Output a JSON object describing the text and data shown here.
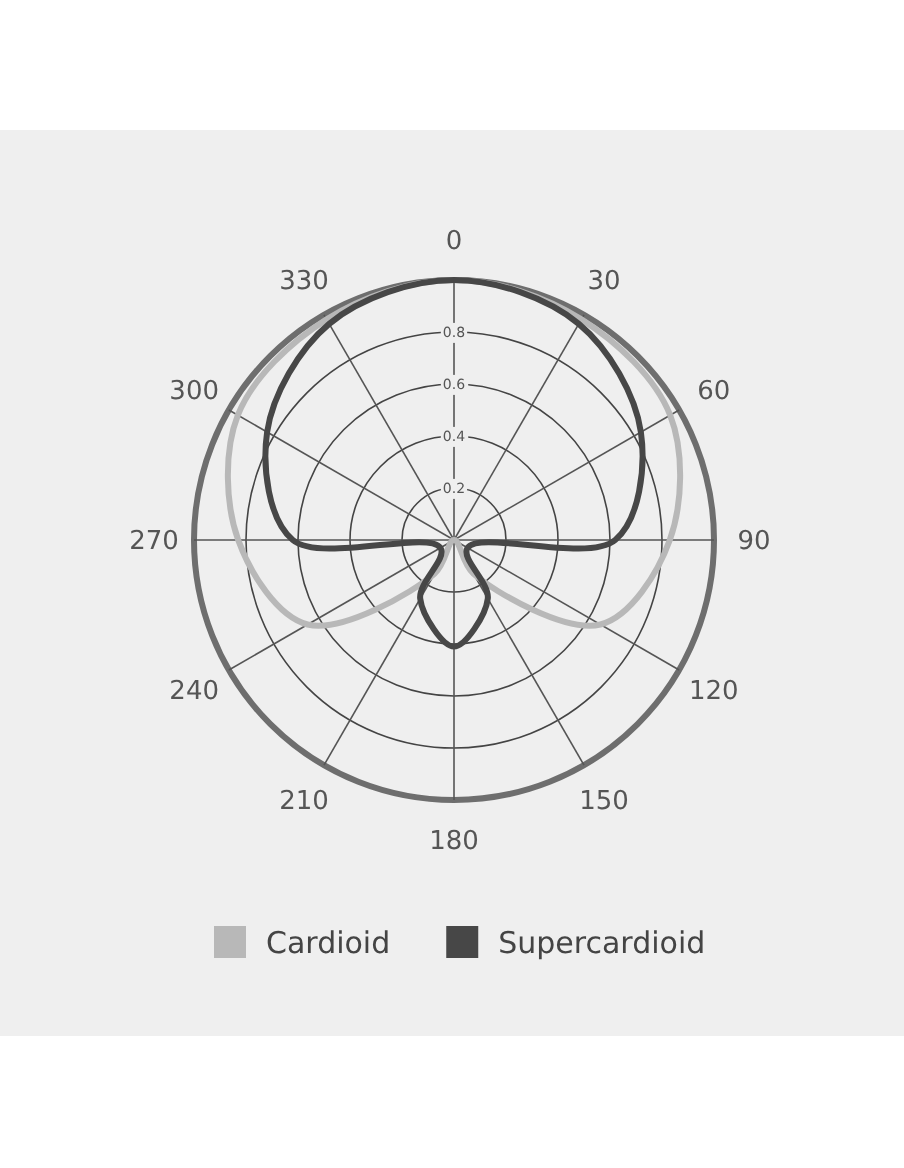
{
  "chart_data": {
    "type": "radar",
    "categories": [
      "0",
      "30",
      "60",
      "90",
      "120",
      "150",
      "180",
      "210",
      "240",
      "270",
      "300",
      "330"
    ],
    "series": [
      {
        "name": "Cardioid",
        "color": "#b8b8b8",
        "values": [
          1.0,
          0.98,
          0.96,
          0.83,
          0.65,
          0.15,
          0,
          0.15,
          0.65,
          0.83,
          0.96,
          0.98
        ]
      },
      {
        "name": "Supercardioid",
        "color": "#474747",
        "values": [
          1.0,
          0.96,
          0.83,
          0.62,
          0.06,
          0.26,
          0.41,
          0.26,
          0.06,
          0.62,
          0.83,
          0.96
        ]
      }
    ],
    "ylim": [
      0,
      1
    ],
    "yticks": [
      0.2,
      0.4,
      0.6,
      0.8
    ],
    "grid": true,
    "legend": "bottom"
  }
}
